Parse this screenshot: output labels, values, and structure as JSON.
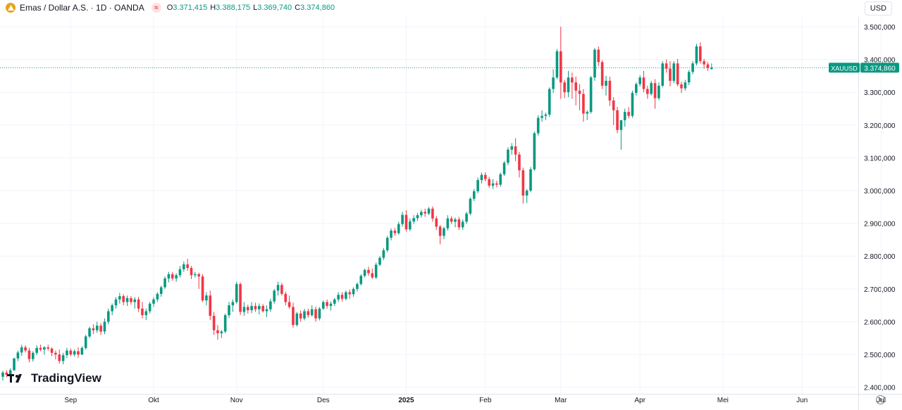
{
  "header": {
    "title": "Emas / Dollar A.S. · 1D · OANDA",
    "o_label": "O",
    "o_value": "3.371,415",
    "h_label": "H",
    "h_value": "3.388,175",
    "l_label": "L",
    "l_value": "3.369,740",
    "c_label": "C",
    "c_value": "3.374,860",
    "currency": "USD",
    "indicator_icon": "compare-icon",
    "logo_icon": "gold-coin-icon"
  },
  "watermark": "TradingView",
  "price_badge": {
    "symbol": "XAUUSD",
    "value": "3.374,860"
  },
  "colors": {
    "up": "#089981",
    "down": "#f23645",
    "grid": "#f0f3fa",
    "text": "#131722",
    "axis_text": "#131722"
  },
  "chart_data": {
    "type": "candlestick",
    "ylim": [
      2380,
      3530
    ],
    "ytick_values": [
      2400,
      2500,
      2600,
      2700,
      2800,
      2900,
      3000,
      3100,
      3200,
      3300,
      3400,
      3500
    ],
    "ytick_labels": [
      "2.400,000",
      "2.500,000",
      "2.600,000",
      "2.700,000",
      "2.800,000",
      "2.900,000",
      "3.000,000",
      "3.100,000",
      "3.200,000",
      "3.300,000",
      "3.400,000",
      "3.500,000"
    ],
    "xtick_labels": [
      "Sep",
      "Okt",
      "Nov",
      "Des",
      "2025",
      "Feb",
      "Mar",
      "Apr",
      "Mei",
      "Jun",
      "Jul"
    ],
    "xtick_index": [
      18,
      40,
      62,
      85,
      107,
      128,
      148,
      169,
      191,
      212,
      233
    ],
    "last_price": 3374.86,
    "candles": [
      [
        2432,
        2450,
        2420,
        2445
      ],
      [
        2445,
        2452,
        2430,
        2438
      ],
      [
        2438,
        2458,
        2432,
        2452
      ],
      [
        2452,
        2490,
        2450,
        2488
      ],
      [
        2488,
        2512,
        2480,
        2506
      ],
      [
        2506,
        2530,
        2496,
        2522
      ],
      [
        2522,
        2528,
        2506,
        2512
      ],
      [
        2512,
        2520,
        2476,
        2486
      ],
      [
        2486,
        2510,
        2478,
        2505
      ],
      [
        2505,
        2528,
        2498,
        2520
      ],
      [
        2520,
        2530,
        2510,
        2515
      ],
      [
        2515,
        2525,
        2500,
        2522
      ],
      [
        2522,
        2530,
        2512,
        2518
      ],
      [
        2518,
        2522,
        2495,
        2505
      ],
      [
        2505,
        2512,
        2485,
        2500
      ],
      [
        2500,
        2515,
        2472,
        2480
      ],
      [
        2480,
        2505,
        2470,
        2498
      ],
      [
        2498,
        2520,
        2490,
        2512
      ],
      [
        2512,
        2518,
        2495,
        2500
      ],
      [
        2500,
        2515,
        2494,
        2510
      ],
      [
        2510,
        2522,
        2490,
        2500
      ],
      [
        2500,
        2525,
        2498,
        2520
      ],
      [
        2520,
        2560,
        2515,
        2555
      ],
      [
        2555,
        2585,
        2550,
        2580
      ],
      [
        2580,
        2592,
        2562,
        2574
      ],
      [
        2574,
        2600,
        2566,
        2588
      ],
      [
        2588,
        2596,
        2560,
        2570
      ],
      [
        2570,
        2610,
        2562,
        2600
      ],
      [
        2600,
        2640,
        2592,
        2632
      ],
      [
        2632,
        2656,
        2620,
        2650
      ],
      [
        2650,
        2675,
        2640,
        2668
      ],
      [
        2668,
        2688,
        2655,
        2678
      ],
      [
        2678,
        2684,
        2650,
        2660
      ],
      [
        2660,
        2680,
        2648,
        2672
      ],
      [
        2672,
        2678,
        2652,
        2660
      ],
      [
        2660,
        2675,
        2640,
        2668
      ],
      [
        2668,
        2676,
        2630,
        2640
      ],
      [
        2640,
        2660,
        2610,
        2620
      ],
      [
        2620,
        2640,
        2605,
        2632
      ],
      [
        2632,
        2660,
        2625,
        2655
      ],
      [
        2655,
        2675,
        2645,
        2668
      ],
      [
        2668,
        2690,
        2660,
        2685
      ],
      [
        2685,
        2710,
        2676,
        2705
      ],
      [
        2705,
        2738,
        2700,
        2732
      ],
      [
        2732,
        2752,
        2720,
        2745
      ],
      [
        2745,
        2752,
        2725,
        2732
      ],
      [
        2732,
        2748,
        2722,
        2742
      ],
      [
        2742,
        2770,
        2735,
        2760
      ],
      [
        2760,
        2784,
        2752,
        2775
      ],
      [
        2775,
        2792,
        2755,
        2764
      ],
      [
        2764,
        2770,
        2730,
        2742
      ],
      [
        2742,
        2752,
        2735,
        2745
      ],
      [
        2745,
        2750,
        2700,
        2738
      ],
      [
        2738,
        2745,
        2660,
        2665
      ],
      [
        2665,
        2690,
        2650,
        2680
      ],
      [
        2680,
        2695,
        2605,
        2618
      ],
      [
        2618,
        2630,
        2560,
        2574
      ],
      [
        2574,
        2590,
        2545,
        2565
      ],
      [
        2565,
        2575,
        2550,
        2570
      ],
      [
        2570,
        2625,
        2565,
        2620
      ],
      [
        2620,
        2660,
        2612,
        2650
      ],
      [
        2650,
        2668,
        2630,
        2660
      ],
      [
        2660,
        2722,
        2655,
        2715
      ],
      [
        2715,
        2720,
        2620,
        2630
      ],
      [
        2630,
        2660,
        2618,
        2645
      ],
      [
        2645,
        2652,
        2625,
        2635
      ],
      [
        2635,
        2660,
        2626,
        2648
      ],
      [
        2648,
        2658,
        2630,
        2638
      ],
      [
        2638,
        2656,
        2622,
        2648
      ],
      [
        2648,
        2654,
        2628,
        2632
      ],
      [
        2632,
        2650,
        2614,
        2638
      ],
      [
        2638,
        2670,
        2630,
        2662
      ],
      [
        2662,
        2700,
        2655,
        2695
      ],
      [
        2695,
        2722,
        2680,
        2712
      ],
      [
        2712,
        2718,
        2680,
        2685
      ],
      [
        2685,
        2692,
        2650,
        2660
      ],
      [
        2660,
        2680,
        2640,
        2645
      ],
      [
        2645,
        2658,
        2582,
        2590
      ],
      [
        2590,
        2630,
        2585,
        2625
      ],
      [
        2625,
        2634,
        2600,
        2610
      ],
      [
        2610,
        2640,
        2604,
        2632
      ],
      [
        2632,
        2640,
        2612,
        2620
      ],
      [
        2620,
        2650,
        2615,
        2638
      ],
      [
        2638,
        2646,
        2600,
        2610
      ],
      [
        2610,
        2645,
        2604,
        2640
      ],
      [
        2640,
        2665,
        2636,
        2660
      ],
      [
        2660,
        2668,
        2640,
        2648
      ],
      [
        2648,
        2662,
        2634,
        2655
      ],
      [
        2655,
        2672,
        2648,
        2668
      ],
      [
        2668,
        2690,
        2660,
        2682
      ],
      [
        2682,
        2690,
        2662,
        2670
      ],
      [
        2670,
        2695,
        2665,
        2690
      ],
      [
        2690,
        2698,
        2670,
        2684
      ],
      [
        2684,
        2705,
        2676,
        2700
      ],
      [
        2700,
        2720,
        2692,
        2715
      ],
      [
        2715,
        2745,
        2710,
        2740
      ],
      [
        2740,
        2762,
        2735,
        2758
      ],
      [
        2758,
        2768,
        2740,
        2748
      ],
      [
        2748,
        2762,
        2730,
        2735
      ],
      [
        2735,
        2780,
        2730,
        2774
      ],
      [
        2774,
        2800,
        2770,
        2795
      ],
      [
        2795,
        2825,
        2788,
        2818
      ],
      [
        2818,
        2862,
        2812,
        2856
      ],
      [
        2856,
        2885,
        2848,
        2878
      ],
      [
        2878,
        2886,
        2862,
        2870
      ],
      [
        2870,
        2905,
        2865,
        2898
      ],
      [
        2898,
        2935,
        2890,
        2926
      ],
      [
        2926,
        2940,
        2875,
        2882
      ],
      [
        2882,
        2915,
        2876,
        2906
      ],
      [
        2906,
        2925,
        2898,
        2916
      ],
      [
        2916,
        2932,
        2908,
        2925
      ],
      [
        2925,
        2942,
        2918,
        2935
      ],
      [
        2935,
        2945,
        2920,
        2930
      ],
      [
        2930,
        2950,
        2925,
        2945
      ],
      [
        2945,
        2952,
        2905,
        2915
      ],
      [
        2915,
        2922,
        2880,
        2890
      ],
      [
        2890,
        2895,
        2836,
        2862
      ],
      [
        2862,
        2890,
        2852,
        2885
      ],
      [
        2885,
        2925,
        2878,
        2915
      ],
      [
        2915,
        2922,
        2898,
        2905
      ],
      [
        2905,
        2918,
        2888,
        2912
      ],
      [
        2912,
        2920,
        2880,
        2888
      ],
      [
        2888,
        2912,
        2880,
        2905
      ],
      [
        2905,
        2935,
        2898,
        2930
      ],
      [
        2930,
        2980,
        2925,
        2975
      ],
      [
        2975,
        3005,
        2968,
        2998
      ],
      [
        2998,
        3040,
        2992,
        3032
      ],
      [
        3032,
        3055,
        3022,
        3048
      ],
      [
        3048,
        3056,
        3028,
        3035
      ],
      [
        3035,
        3042,
        3008,
        3015
      ],
      [
        3015,
        3035,
        3005,
        3022
      ],
      [
        3022,
        3030,
        3010,
        3018
      ],
      [
        3018,
        3055,
        3012,
        3050
      ],
      [
        3050,
        3090,
        3045,
        3085
      ],
      [
        3085,
        3132,
        3078,
        3125
      ],
      [
        3125,
        3145,
        3110,
        3135
      ],
      [
        3135,
        3160,
        3090,
        3110
      ],
      [
        3110,
        3118,
        3040,
        3062
      ],
      [
        3062,
        3070,
        2960,
        2985
      ],
      [
        2985,
        3005,
        2962,
        3000
      ],
      [
        3000,
        3072,
        2995,
        3065
      ],
      [
        3065,
        3180,
        3060,
        3175
      ],
      [
        3175,
        3230,
        3168,
        3222
      ],
      [
        3222,
        3245,
        3210,
        3228
      ],
      [
        3228,
        3238,
        3215,
        3232
      ],
      [
        3232,
        3315,
        3225,
        3310
      ],
      [
        3310,
        3370,
        3298,
        3345
      ],
      [
        3345,
        3432,
        3340,
        3425
      ],
      [
        3425,
        3500,
        3280,
        3330
      ],
      [
        3330,
        3338,
        3282,
        3300
      ],
      [
        3300,
        3365,
        3285,
        3345
      ],
      [
        3345,
        3360,
        3280,
        3330
      ],
      [
        3330,
        3348,
        3260,
        3305
      ],
      [
        3305,
        3325,
        3245,
        3295
      ],
      [
        3295,
        3310,
        3210,
        3235
      ],
      [
        3235,
        3245,
        3215,
        3240
      ],
      [
        3240,
        3350,
        3235,
        3345
      ],
      [
        3345,
        3435,
        3335,
        3430
      ],
      [
        3430,
        3440,
        3380,
        3392
      ],
      [
        3392,
        3398,
        3310,
        3320
      ],
      [
        3320,
        3350,
        3290,
        3335
      ],
      [
        3335,
        3348,
        3258,
        3275
      ],
      [
        3275,
        3285,
        3200,
        3245
      ],
      [
        3245,
        3255,
        3175,
        3185
      ],
      [
        3185,
        3210,
        3125,
        3215
      ],
      [
        3215,
        3250,
        3195,
        3240
      ],
      [
        3240,
        3255,
        3220,
        3228
      ],
      [
        3228,
        3305,
        3222,
        3298
      ],
      [
        3298,
        3330,
        3290,
        3325
      ],
      [
        3325,
        3352,
        3318,
        3345
      ],
      [
        3345,
        3365,
        3300,
        3310
      ],
      [
        3310,
        3320,
        3280,
        3295
      ],
      [
        3295,
        3335,
        3290,
        3328
      ],
      [
        3328,
        3340,
        3250,
        3282
      ],
      [
        3282,
        3330,
        3276,
        3320
      ],
      [
        3320,
        3395,
        3315,
        3388
      ],
      [
        3388,
        3400,
        3360,
        3372
      ],
      [
        3372,
        3395,
        3318,
        3335
      ],
      [
        3335,
        3395,
        3328,
        3388
      ],
      [
        3388,
        3402,
        3318,
        3324
      ],
      [
        3324,
        3332,
        3298,
        3312
      ],
      [
        3312,
        3338,
        3305,
        3330
      ],
      [
        3330,
        3368,
        3322,
        3362
      ],
      [
        3362,
        3395,
        3355,
        3388
      ],
      [
        3388,
        3448,
        3382,
        3440
      ],
      [
        3440,
        3452,
        3388,
        3395
      ],
      [
        3395,
        3402,
        3372,
        3385
      ],
      [
        3385,
        3392,
        3365,
        3374
      ],
      [
        3371,
        3388,
        3369,
        3375
      ]
    ]
  }
}
